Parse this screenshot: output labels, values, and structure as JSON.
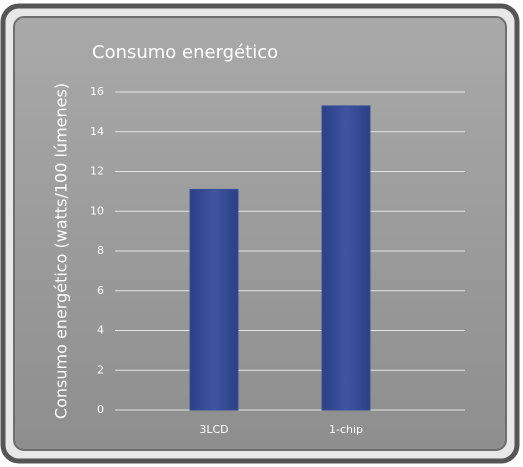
{
  "chart_data": {
    "type": "bar",
    "title": "Consumo energético",
    "y_label": "Consumo energético (watts/100 lúmenes)",
    "categories": [
      "3LCD",
      "1-chip"
    ],
    "values": [
      11.1,
      15.3
    ],
    "color": "#3a4f9a",
    "ylim": [
      0,
      16
    ],
    "yticks": [
      0,
      2,
      4,
      6,
      8,
      10,
      12,
      14,
      16
    ],
    "grid": true
  }
}
